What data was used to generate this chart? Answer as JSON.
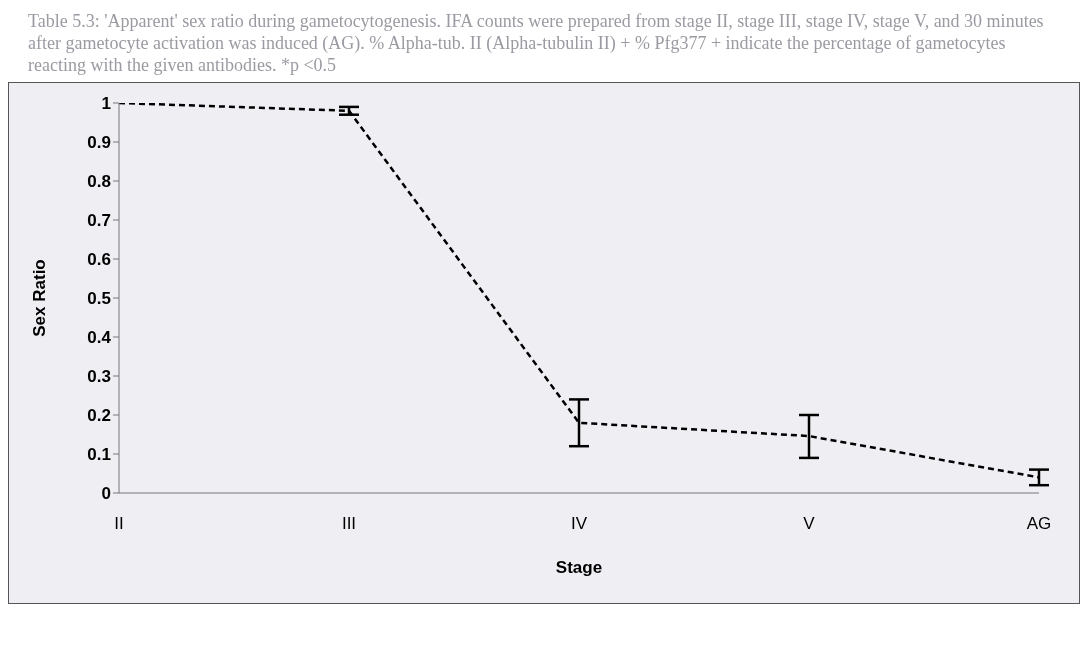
{
  "chart_data": {
    "type": "line",
    "categories": [
      "II",
      "III",
      "IV",
      "V",
      "AG"
    ],
    "series": [
      {
        "color": "#000000",
        "values": [
          1,
          0.98,
          0.18,
          0.146,
          0.04
        ],
        "errors": [
          null,
          0.01,
          [
            0.12,
            0.24
          ],
          [
            0.09,
            0.2
          ],
          [
            0.02,
            0.06
          ]
        ]
      }
    ],
    "xlabel": "Stage",
    "ylabel": "Sex Ratio",
    "ylim": [
      0,
      1
    ],
    "yticks": [
      0,
      0.1,
      0.2,
      0.3,
      0.4,
      0.5,
      0.6,
      0.7,
      0.8,
      0.9,
      1
    ],
    "line_style": "dashed",
    "marker": "none",
    "grid": false,
    "legend": false,
    "annotations": [
      "Table 5.3: 'Apparent' sex ratio during gametocytogenesis. IFA counts were prepared from stage II, stage III, stage IV, stage V, and 30 minutes after gametocyte activation was induced (AG). % Alpha-tub. II (Alpha-tubulin II) + % Pfg377 + indicate the percentage of gametocytes reacting with the given antibodies. *p <0.5"
    ]
  }
}
